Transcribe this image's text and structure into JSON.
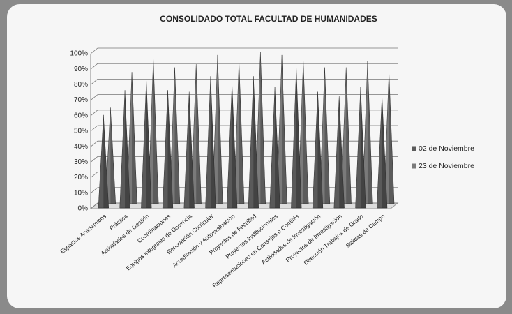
{
  "chart_data": {
    "type": "cone",
    "title": "CONSOLIDADO TOTAL FACULTAD DE HUMANIDADES",
    "categories": [
      "Espacios Académicos",
      "Práctica",
      "Actividades de Gestión",
      "Coordinaciones",
      "Equipos Integrales de Docencia",
      "Renovación Curricular",
      "Acreditación y Autoevaluación",
      "Proyectos de Facultad",
      "Proyectos Institucionales",
      "Representaciones en Consejos o Comités",
      "Actividades de Investigación",
      "Proyectos de Investigación",
      "Dirección Trabajos de Grado",
      "Salidas de Campo"
    ],
    "series": [
      {
        "name": "02 de Noviembre",
        "color": "#5a5a5a",
        "values": [
          60,
          76,
          82,
          76,
          75,
          85,
          80,
          85,
          78,
          90,
          75,
          72,
          78,
          72
        ]
      },
      {
        "name": "23 de Noviembre",
        "color": "#7a7a7a",
        "values": [
          62,
          85,
          93,
          88,
          90,
          96,
          92,
          98,
          96,
          92,
          88,
          88,
          92,
          85
        ]
      }
    ],
    "ylim": [
      0,
      100
    ],
    "yticks": [
      {
        "value": 0,
        "label": "0%"
      },
      {
        "value": 10,
        "label": "10%"
      },
      {
        "value": 20,
        "label": "20%"
      },
      {
        "value": 30,
        "label": "30%"
      },
      {
        "value": 40,
        "label": "40%"
      },
      {
        "value": 50,
        "label": "50%"
      },
      {
        "value": 60,
        "label": "60%"
      },
      {
        "value": 70,
        "label": "70%"
      },
      {
        "value": 80,
        "label": "80%"
      },
      {
        "value": 90,
        "label": "90%"
      },
      {
        "value": 100,
        "label": "100%"
      }
    ],
    "grid": true,
    "legend": "right"
  }
}
